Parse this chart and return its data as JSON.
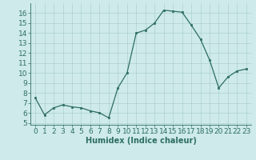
{
  "x": [
    0,
    1,
    2,
    3,
    4,
    5,
    6,
    7,
    8,
    9,
    10,
    11,
    12,
    13,
    14,
    15,
    16,
    17,
    18,
    19,
    20,
    21,
    22,
    23
  ],
  "y": [
    7.5,
    5.8,
    6.5,
    6.8,
    6.6,
    6.5,
    6.2,
    6.0,
    5.5,
    8.5,
    10.0,
    14.0,
    14.3,
    15.0,
    16.3,
    16.2,
    16.1,
    14.8,
    13.4,
    11.3,
    8.5,
    9.6,
    10.2,
    10.4
  ],
  "xlabel": "Humidex (Indice chaleur)",
  "ylim": [
    4.8,
    17.0
  ],
  "xlim": [
    -0.5,
    23.5
  ],
  "yticks": [
    5,
    6,
    7,
    8,
    9,
    10,
    11,
    12,
    13,
    14,
    15,
    16
  ],
  "xticks": [
    0,
    1,
    2,
    3,
    4,
    5,
    6,
    7,
    8,
    9,
    10,
    11,
    12,
    13,
    14,
    15,
    16,
    17,
    18,
    19,
    20,
    21,
    22,
    23
  ],
  "line_color": "#2d6e62",
  "marker_color": "#2d6e62",
  "bg_color": "#ceeaea",
  "grid_color": "#aed0d0",
  "xlabel_fontsize": 7,
  "tick_fontsize": 6.5
}
